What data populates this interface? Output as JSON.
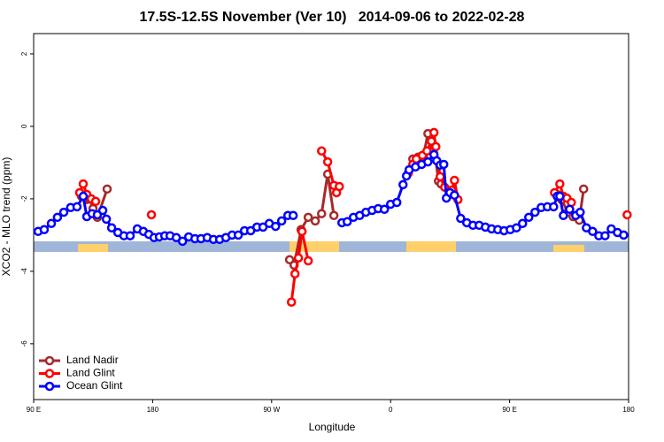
{
  "chart_data": {
    "type": "line",
    "title": "17.5S-12.5S November (Ver 10)   2014-09-06 to 2022-02-28",
    "x_label": "Longitude",
    "y_label": "XCO2 - MLO trend (ppm)",
    "xlim": [
      90,
      540
    ],
    "ylim": [
      -7.54,
      2.56
    ],
    "xticks": [
      {
        "value": 90,
        "label": "90 E"
      },
      {
        "value": 180,
        "label": "180"
      },
      {
        "value": 270,
        "label": "90 W"
      },
      {
        "value": 360,
        "label": "0"
      },
      {
        "value": 450,
        "label": "90 E"
      },
      {
        "value": 540,
        "label": "180"
      }
    ],
    "yticks": [
      2,
      0,
      -2,
      -4,
      -6
    ],
    "legend": "bottom-left",
    "series": [
      {
        "name": "Land Nadir",
        "color": "#a52a2a",
        "x": [
          126.2,
          130.2,
          132.2,
          134.9,
          138.2,
          145.6,
          null,
          283.6,
          287,
          292.3,
          297.7,
          303,
          307.8,
          312.4,
          317.1,
          null,
          376.8,
          380.8,
          384.8,
          388.2,
          392.8,
          396.2,
          398.2,
          null,
          486,
          489.3,
          494,
          498,
          502.7,
          506
        ],
        "values": [
          -1.93,
          -2.02,
          -2.0,
          -2.27,
          -2.51,
          -1.73,
          null,
          -3.68,
          -3.83,
          -2.85,
          -2.51,
          -2.61,
          -2.41,
          -1.32,
          -2.46,
          null,
          -0.9,
          -0.85,
          -0.83,
          -0.2,
          -0.54,
          -1.51,
          -1.59,
          null,
          -1.88,
          -2.02,
          -2.37,
          -2.49,
          -2.59,
          -1.73
        ]
      },
      {
        "name": "Land Glint",
        "color": "#ff0000",
        "x": [
          124.8,
          127.5,
          130.2,
          133.6,
          136.9,
          null,
          179.1,
          null,
          285,
          287.7,
          290.3,
          293,
          297.7,
          null,
          307.8,
          312.4,
          317.1,
          319.1,
          321.2,
          null,
          373.4,
          376.8,
          379.4,
          384.1,
          387.5,
          390.8,
          392.8,
          394.2,
          397.5,
          400.9,
          406.2,
          408.3,
          410.9,
          null,
          484,
          488,
          490.7,
          493.3,
          496.7,
          null,
          538.9
        ],
        "values": [
          -1.83,
          -1.59,
          -1.88,
          -2.0,
          -2.07,
          null,
          -2.44,
          null,
          -4.85,
          -4.07,
          -3.63,
          -2.9,
          -3.71,
          null,
          -0.68,
          -0.98,
          -1.63,
          -1.83,
          -1.66,
          null,
          -1.29,
          -1.05,
          -0.9,
          -0.8,
          -0.68,
          -0.41,
          -0.17,
          -0.56,
          -1.39,
          -1.68,
          -1.76,
          -1.49,
          -2.02,
          null,
          -1.83,
          -1.59,
          -1.93,
          -1.98,
          -2.1,
          null,
          -2.44
        ]
      },
      {
        "name": "Ocean Glint",
        "color": "#0000ff",
        "x": [
          93.4,
          98,
          103.4,
          108,
          112.8,
          118,
          122.8,
          127.5,
          130.2,
          134.2,
          138.2,
          142.3,
          145,
          149,
          153.7,
          158.3,
          163,
          168.4,
          173,
          177.1,
          181.1,
          185.1,
          189.2,
          193.2,
          197.9,
          202.6,
          207.3,
          212,
          216.6,
          221.3,
          226,
          230.7,
          235.4,
          240.1,
          244.8,
          249.5,
          254.2,
          258.9,
          263.5,
          268.2,
          273,
          277.6,
          282.3,
          286.3,
          null,
          323.2,
          327.2,
          331.9,
          336.6,
          341.3,
          346,
          350.6,
          355.3,
          360,
          364.7,
          369.4,
          372,
          374,
          378.8,
          383.5,
          388.2,
          392.8,
          394.9,
          397.5,
          400.2,
          402.2,
          404.9,
          408.3,
          413,
          417.6,
          422.3,
          427,
          431.7,
          436.4,
          441.1,
          445.8,
          450.5,
          455.2,
          459.8,
          464.5,
          469.2,
          473.9,
          478.6,
          483.3,
          486,
          488,
          490.7,
          495.4,
          500,
          503.4,
          508.1,
          512.8,
          517.5,
          522.2,
          526.9,
          531.6,
          536.3
        ],
        "values": [
          -2.9,
          -2.85,
          -2.68,
          -2.51,
          -2.37,
          -2.24,
          -2.22,
          -1.93,
          -2.49,
          -2.41,
          -2.44,
          -2.32,
          -2.56,
          -2.8,
          -2.93,
          -3.02,
          -3.02,
          -2.83,
          -2.9,
          -2.98,
          -3.07,
          -3.05,
          -3.02,
          -3.02,
          -3.07,
          -3.17,
          -3.05,
          -3.1,
          -3.1,
          -3.07,
          -3.12,
          -3.12,
          -3.07,
          -3.0,
          -3.0,
          -2.88,
          -2.88,
          -2.78,
          -2.78,
          -2.68,
          -2.76,
          -2.61,
          -2.46,
          -2.46,
          null,
          -2.66,
          -2.63,
          -2.51,
          -2.46,
          -2.37,
          -2.32,
          -2.27,
          -2.29,
          -2.15,
          -2.1,
          -1.61,
          -1.37,
          -1.2,
          -1.12,
          -1.05,
          -0.98,
          -0.78,
          -0.95,
          -1.07,
          -1.05,
          -1.98,
          -1.83,
          -1.9,
          -2.54,
          -2.66,
          -2.73,
          -2.73,
          -2.78,
          -2.83,
          -2.85,
          -2.88,
          -2.85,
          -2.8,
          -2.68,
          -2.51,
          -2.37,
          -2.24,
          -2.22,
          -2.22,
          -1.93,
          -1.93,
          -2.46,
          -2.29,
          -2.46,
          -2.37,
          -2.8,
          -2.9,
          -3.02,
          -3.02,
          -2.83,
          -2.93,
          -3.0
        ]
      }
    ]
  }
}
